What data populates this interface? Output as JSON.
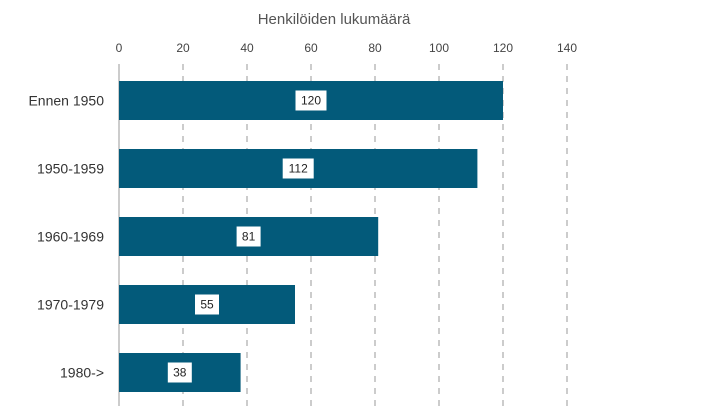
{
  "chart_data": {
    "type": "bar",
    "orientation": "horizontal",
    "title": "Henkilöiden lukumäärä",
    "xlabel": "Henkilöiden lukumäärä",
    "ylabel": "",
    "categories": [
      "Ennen 1950",
      "1950-1959",
      "1960-1969",
      "1970-1979",
      "1980->"
    ],
    "values": [
      120,
      112,
      81,
      55,
      38
    ],
    "xlim": [
      0,
      140
    ],
    "xticks": [
      0,
      20,
      40,
      60,
      80,
      100,
      120,
      140
    ],
    "grid": true,
    "legend": "none",
    "bar_color": "#035a7a"
  }
}
